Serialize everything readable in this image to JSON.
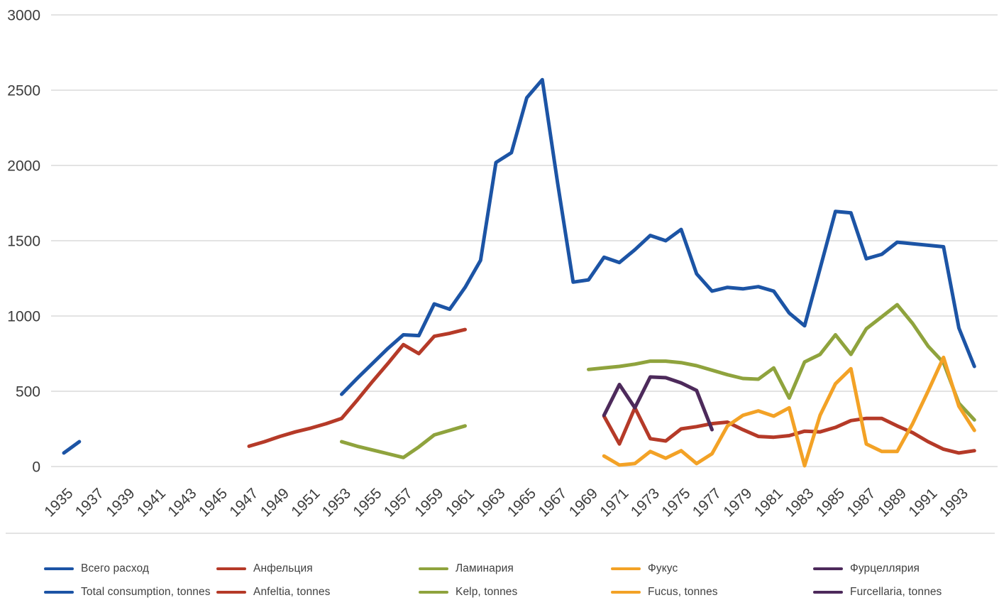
{
  "chart_data": {
    "type": "line",
    "title": "",
    "xlabel": "",
    "ylabel": "",
    "grid": true,
    "legend_position": "bottom",
    "y_axis": {
      "min": 0,
      "max": 3000,
      "step": 500,
      "tick_labels": [
        "0",
        "500",
        "1000",
        "1500",
        "2000",
        "2500",
        "3000"
      ]
    },
    "x_axis": {
      "tick_labels": [
        "1935",
        "1937",
        "1939",
        "1941",
        "1943",
        "1945",
        "1947",
        "1949",
        "1951",
        "1953",
        "1955",
        "1957",
        "1959",
        "1961",
        "1963",
        "1965",
        "1967",
        "1969",
        "1971",
        "1973",
        "1975",
        "1977",
        "1979",
        "1981",
        "1983",
        "1985",
        "1987",
        "1989",
        "1991",
        "1993"
      ]
    },
    "series": [
      {
        "id": "total",
        "name_ru": "Всего расход",
        "name_en": "Total consumption, tonnes",
        "color": "#1c54a5",
        "segments": [
          [
            [
              1935,
              90
            ],
            [
              1936,
              165
            ]
          ],
          [
            [
              1953,
              480
            ],
            [
              1954,
              585
            ],
            [
              1955,
              685
            ],
            [
              1956,
              785
            ],
            [
              1957,
              875
            ],
            [
              1958,
              870
            ],
            [
              1959,
              1080
            ],
            [
              1960,
              1045
            ],
            [
              1961,
              1190
            ],
            [
              1962,
              1370
            ],
            [
              1963,
              2020
            ],
            [
              1964,
              2085
            ],
            [
              1965,
              2450
            ],
            [
              1966,
              2570
            ],
            [
              1967,
              1880
            ],
            [
              1968,
              1225
            ],
            [
              1969,
              1240
            ],
            [
              1970,
              1390
            ],
            [
              1971,
              1355
            ],
            [
              1972,
              1440
            ],
            [
              1973,
              1535
            ],
            [
              1974,
              1500
            ],
            [
              1975,
              1575
            ],
            [
              1976,
              1280
            ],
            [
              1977,
              1165
            ],
            [
              1978,
              1190
            ],
            [
              1979,
              1180
            ],
            [
              1980,
              1195
            ],
            [
              1981,
              1165
            ],
            [
              1982,
              1020
            ],
            [
              1983,
              935
            ],
            [
              1984,
              1315
            ],
            [
              1985,
              1695
            ],
            [
              1986,
              1685
            ],
            [
              1987,
              1380
            ],
            [
              1988,
              1410
            ],
            [
              1989,
              1490
            ],
            [
              1990,
              1480
            ],
            [
              1991,
              1470
            ],
            [
              1992,
              1460
            ],
            [
              1993,
              920
            ],
            [
              1994,
              665
            ]
          ]
        ]
      },
      {
        "id": "anfeltia",
        "name_ru": "Анфельция",
        "name_en": "Anfeltia, tonnes",
        "color": "#b53a28",
        "segments": [
          [
            [
              1947,
              135
            ],
            [
              1948,
              165
            ],
            [
              1949,
              200
            ],
            [
              1950,
              230
            ],
            [
              1951,
              255
            ],
            [
              1952,
              285
            ],
            [
              1953,
              320
            ],
            [
              1954,
              440
            ],
            [
              1955,
              565
            ],
            [
              1956,
              685
            ],
            [
              1957,
              810
            ],
            [
              1958,
              750
            ],
            [
              1959,
              865
            ],
            [
              1960,
              885
            ],
            [
              1961,
              910
            ]
          ],
          [
            [
              1970,
              335
            ],
            [
              1971,
              150
            ],
            [
              1972,
              390
            ],
            [
              1973,
              185
            ],
            [
              1974,
              170
            ],
            [
              1975,
              250
            ],
            [
              1976,
              265
            ],
            [
              1977,
              285
            ],
            [
              1978,
              295
            ],
            [
              1979,
              245
            ],
            [
              1980,
              200
            ],
            [
              1981,
              195
            ],
            [
              1982,
              205
            ],
            [
              1983,
              235
            ],
            [
              1984,
              230
            ],
            [
              1985,
              260
            ],
            [
              1986,
              305
            ],
            [
              1987,
              320
            ],
            [
              1988,
              320
            ],
            [
              1989,
              270
            ],
            [
              1990,
              225
            ],
            [
              1991,
              165
            ],
            [
              1992,
              115
            ],
            [
              1993,
              90
            ],
            [
              1994,
              105
            ]
          ]
        ]
      },
      {
        "id": "kelp",
        "name_ru": "Ламинария",
        "name_en": "Kelp, tonnes",
        "color": "#8fa33d",
        "segments": [
          [
            [
              1953,
              165
            ],
            [
              1954,
              135
            ],
            [
              1955,
              110
            ],
            [
              1956,
              85
            ],
            [
              1957,
              60
            ],
            [
              1958,
              130
            ],
            [
              1959,
              210
            ],
            [
              1960,
              240
            ],
            [
              1961,
              270
            ]
          ],
          [
            [
              1969,
              645
            ],
            [
              1970,
              655
            ],
            [
              1971,
              665
            ],
            [
              1972,
              680
            ],
            [
              1973,
              700
            ],
            [
              1974,
              700
            ],
            [
              1975,
              690
            ],
            [
              1976,
              670
            ],
            [
              1977,
              640
            ],
            [
              1978,
              610
            ],
            [
              1979,
              585
            ],
            [
              1980,
              580
            ],
            [
              1981,
              655
            ],
            [
              1982,
              455
            ],
            [
              1983,
              695
            ],
            [
              1984,
              745
            ],
            [
              1985,
              875
            ],
            [
              1986,
              745
            ],
            [
              1987,
              915
            ],
            [
              1988,
              995
            ],
            [
              1989,
              1075
            ],
            [
              1990,
              950
            ],
            [
              1991,
              800
            ],
            [
              1992,
              690
            ],
            [
              1993,
              420
            ],
            [
              1994,
              310
            ]
          ]
        ]
      },
      {
        "id": "fucus",
        "name_ru": "Фукус",
        "name_en": "Fucus, tonnes",
        "color": "#f3a226",
        "segments": [
          [
            [
              1970,
              70
            ],
            [
              1971,
              10
            ],
            [
              1972,
              20
            ],
            [
              1973,
              100
            ],
            [
              1974,
              55
            ],
            [
              1975,
              105
            ],
            [
              1976,
              20
            ],
            [
              1977,
              85
            ],
            [
              1978,
              270
            ],
            [
              1979,
              340
            ],
            [
              1980,
              370
            ],
            [
              1981,
              335
            ],
            [
              1982,
              390
            ],
            [
              1983,
              5
            ],
            [
              1984,
              340
            ],
            [
              1985,
              550
            ],
            [
              1986,
              650
            ],
            [
              1987,
              150
            ],
            [
              1988,
              100
            ],
            [
              1989,
              100
            ],
            [
              1990,
              285
            ],
            [
              1991,
              500
            ],
            [
              1992,
              725
            ],
            [
              1993,
              400
            ],
            [
              1994,
              240
            ]
          ]
        ]
      },
      {
        "id": "furcellaria",
        "name_ru": "Фурцеллярия",
        "name_en": "Furcellaria, tonnes",
        "color": "#4d2a5b",
        "segments": [
          [
            [
              1970,
              340
            ],
            [
              1971,
              545
            ],
            [
              1972,
              390
            ],
            [
              1973,
              595
            ],
            [
              1974,
              590
            ],
            [
              1975,
              555
            ],
            [
              1976,
              505
            ],
            [
              1977,
              245
            ]
          ]
        ]
      }
    ],
    "colors": {
      "gridline": "#d2d2d2",
      "axis_text": "#3c3c3c",
      "background": "#ffffff"
    }
  }
}
